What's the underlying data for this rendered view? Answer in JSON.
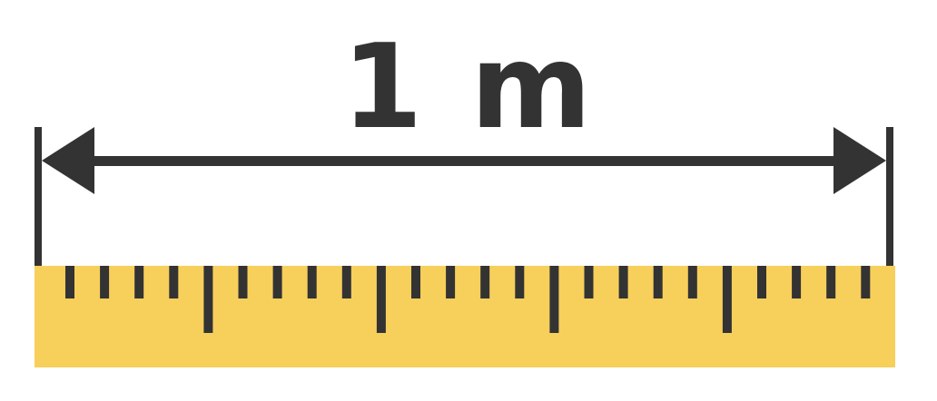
{
  "measurement": {
    "label": "1 m"
  },
  "colors": {
    "ink": "#333333",
    "ruler": "#F7CF5B",
    "background": "#FFFFFF"
  },
  "ruler": {
    "tick_pattern": [
      "minor",
      "minor",
      "minor",
      "minor",
      "major"
    ],
    "tick_count": 24
  }
}
